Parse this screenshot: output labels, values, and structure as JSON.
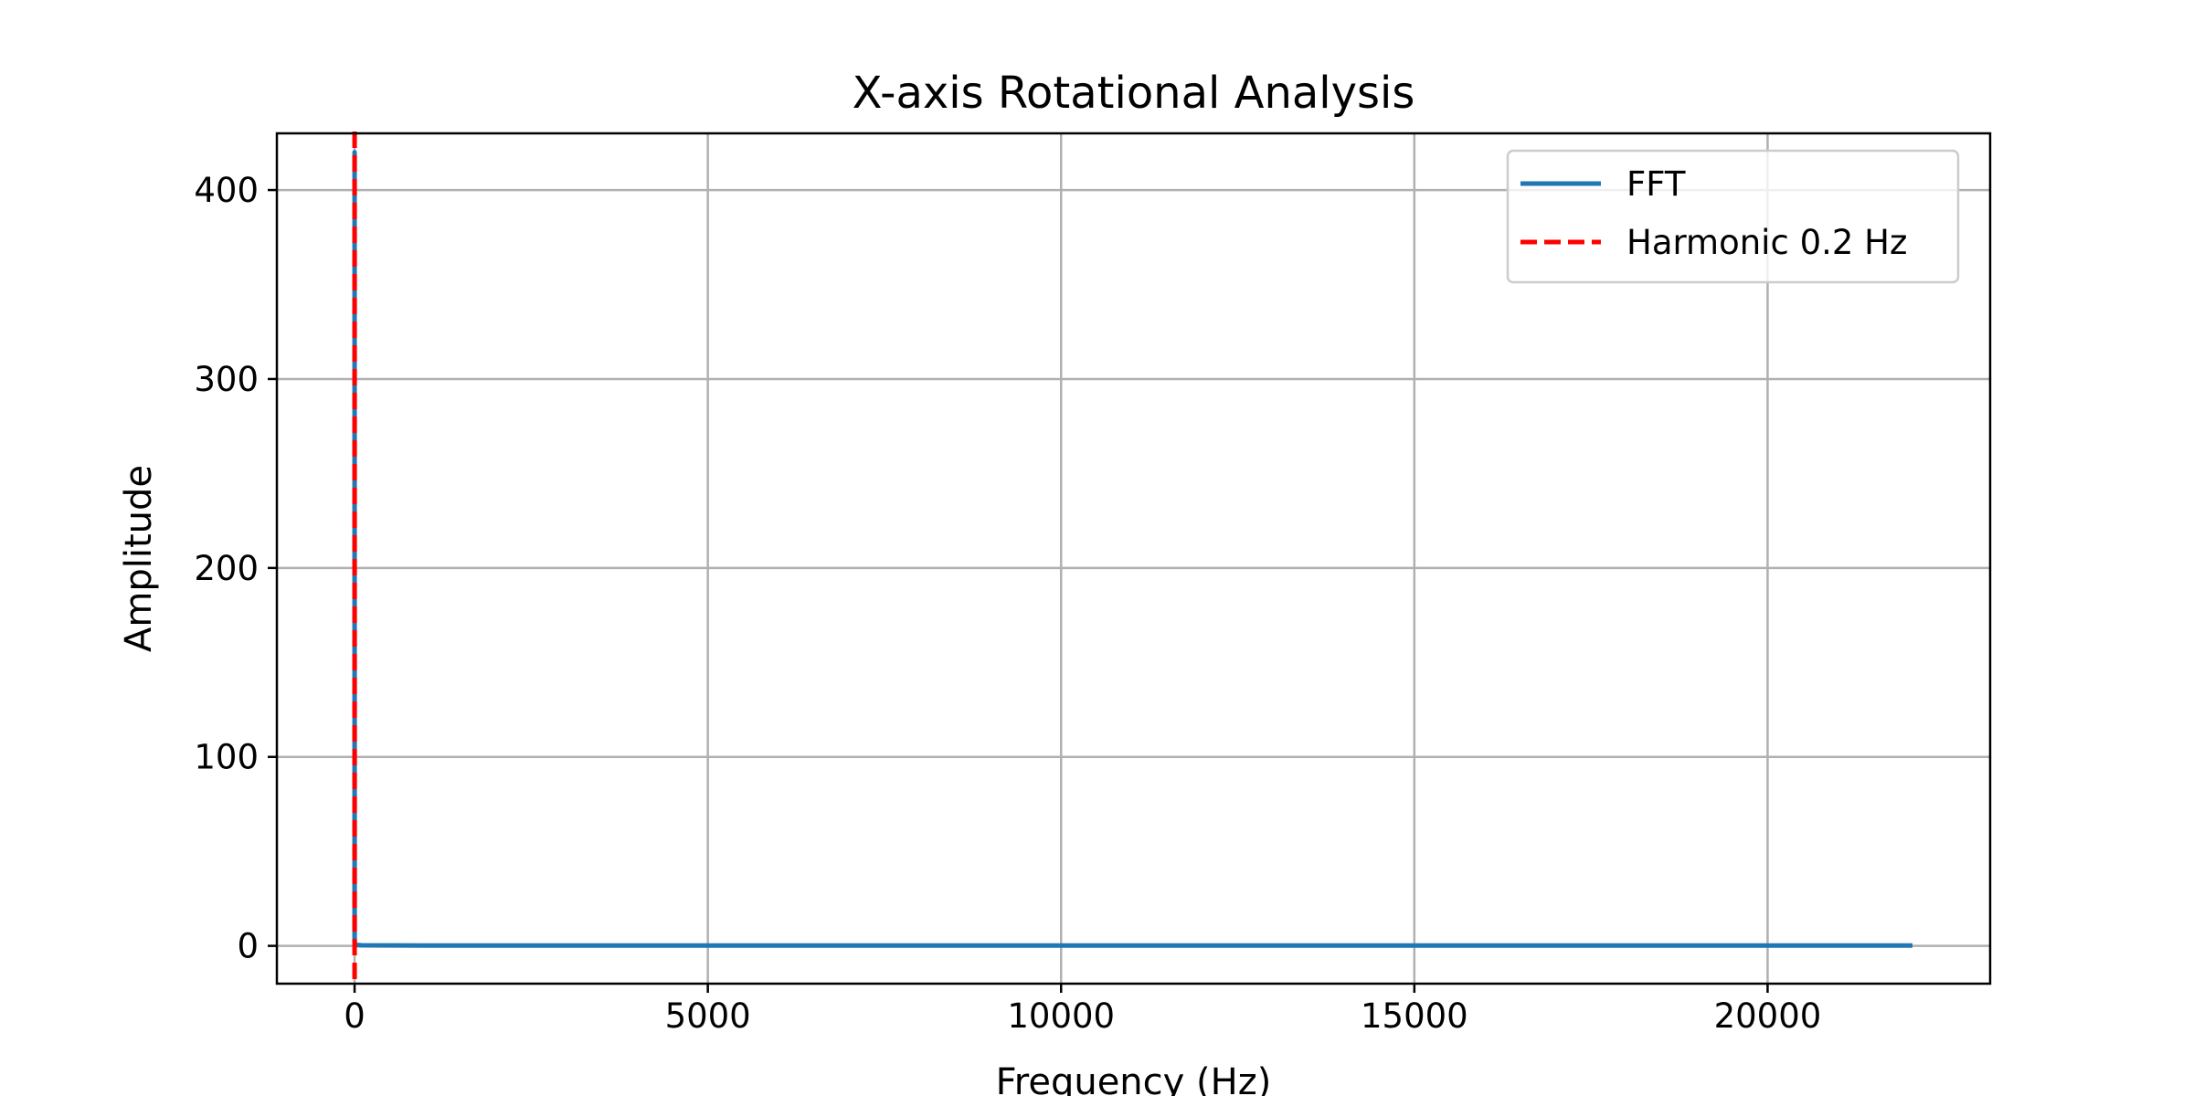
{
  "chart_data": {
    "type": "line",
    "title": "X-axis Rotational Analysis",
    "xlabel": "Frequency (Hz)",
    "ylabel": "Amplitude",
    "xlim": [
      -1100,
      23150
    ],
    "ylim": [
      -20,
      430
    ],
    "xticks": [
      0,
      5000,
      10000,
      15000,
      20000
    ],
    "yticks": [
      0,
      100,
      200,
      300,
      400
    ],
    "grid": true,
    "legend_position": "top-right",
    "series": [
      {
        "name": "FFT",
        "style": "solid",
        "color": "#1f77b4",
        "x": [
          0,
          0.2,
          1,
          5,
          20,
          100,
          1000,
          5000,
          10000,
          15000,
          20000,
          22050
        ],
        "y": [
          2,
          420,
          3,
          1,
          0.5,
          0.3,
          0.2,
          0.2,
          0.2,
          0.2,
          0.2,
          0.2
        ]
      }
    ],
    "reference_lines": [
      {
        "name": "Harmonic 0.2 Hz",
        "orientation": "vertical",
        "x": 0.2,
        "style": "dashed",
        "color": "#ff0000"
      }
    ]
  }
}
